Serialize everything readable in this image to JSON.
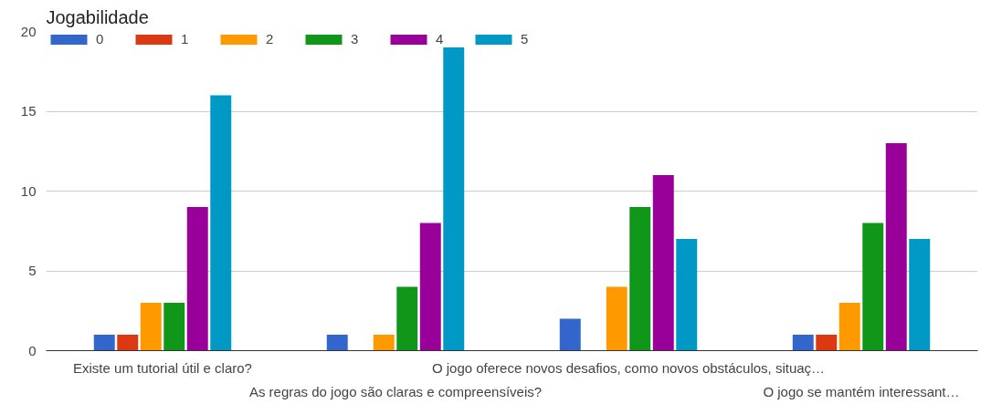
{
  "chart_data": {
    "type": "bar",
    "title": "Jogabilidade",
    "categories": [
      "Existe um tutorial útil e claro?",
      "As regras do jogo são claras e compreensíveis?",
      "O jogo oferece novos desafios, como novos obstáculos, situaç…",
      "O jogo se mantém interessant…"
    ],
    "series": [
      {
        "name": "0",
        "color": "#3366cc",
        "values": [
          1,
          1,
          2,
          1
        ]
      },
      {
        "name": "1",
        "color": "#dc3912",
        "values": [
          1,
          0,
          0,
          1
        ]
      },
      {
        "name": "2",
        "color": "#ff9900",
        "values": [
          3,
          1,
          4,
          3
        ]
      },
      {
        "name": "3",
        "color": "#109618",
        "values": [
          3,
          4,
          9,
          8
        ]
      },
      {
        "name": "4",
        "color": "#990099",
        "values": [
          9,
          8,
          11,
          13
        ]
      },
      {
        "name": "5",
        "color": "#0099c6",
        "values": [
          16,
          19,
          7,
          7
        ]
      }
    ],
    "ylim": [
      0,
      20
    ],
    "yticks": [
      0,
      5,
      10,
      15,
      20
    ],
    "grid": "y",
    "legend": "top left"
  }
}
